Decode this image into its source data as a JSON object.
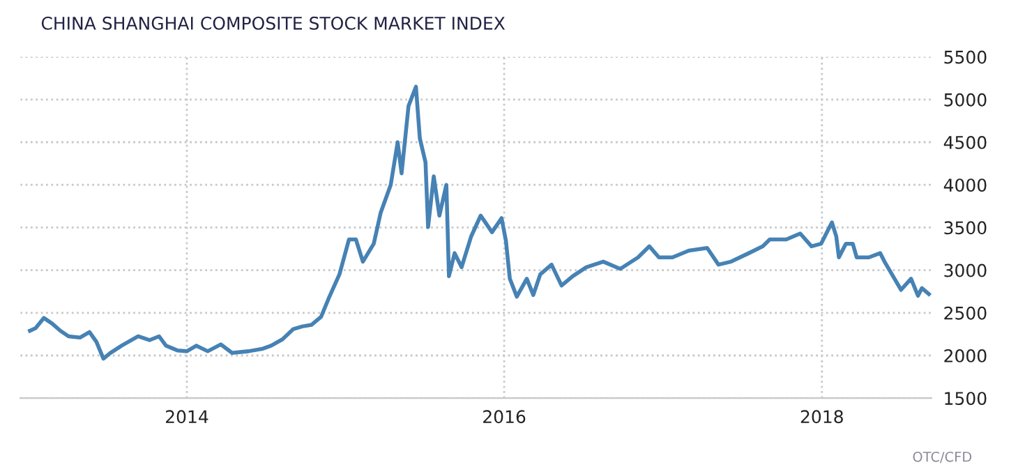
{
  "chart_data": {
    "type": "line",
    "title": "CHINA SHANGHAI COMPOSITE STOCK MARKET INDEX",
    "annotations": [
      "OTC/CFD"
    ],
    "x": [
      "2013-01-05",
      "2013-01-18",
      "2013-02-06",
      "2013-02-25",
      "2013-03-16",
      "2013-04-04",
      "2013-04-30",
      "2013-05-22",
      "2013-06-07",
      "2013-06-23",
      "2013-07-09",
      "2013-08-04",
      "2013-09-11",
      "2013-10-07",
      "2013-10-29",
      "2013-11-14",
      "2013-12-10",
      "2014-01-01",
      "2014-01-23",
      "2014-02-18",
      "2014-03-20",
      "2014-04-15",
      "2014-05-23",
      "2014-06-25",
      "2014-07-14",
      "2014-08-09",
      "2014-09-03",
      "2014-09-23",
      "2014-10-15",
      "2014-11-06",
      "2014-11-25",
      "2014-12-18",
      "2015-01-09",
      "2015-01-25",
      "2015-02-10",
      "2015-03-07",
      "2015-03-23",
      "2015-04-15",
      "2015-05-01",
      "2015-05-10",
      "2015-05-26",
      "2015-06-12",
      "2015-06-21",
      "2015-07-04",
      "2015-07-10",
      "2015-07-23",
      "2015-08-05",
      "2015-08-21",
      "2015-08-27",
      "2015-09-09",
      "2015-09-25",
      "2015-10-17",
      "2015-11-08",
      "2015-12-04",
      "2015-12-26",
      "2016-01-05",
      "2016-01-14",
      "2016-01-30",
      "2016-02-22",
      "2016-03-08",
      "2016-03-24",
      "2016-04-19",
      "2016-05-12",
      "2016-06-07",
      "2016-07-08",
      "2016-08-16",
      "2016-09-24",
      "2016-11-04",
      "2016-11-30",
      "2016-12-22",
      "2017-01-22",
      "2017-03-01",
      "2017-04-12",
      "2017-05-08",
      "2017-06-06",
      "2017-07-17",
      "2017-08-18",
      "2017-09-03",
      "2017-10-11",
      "2017-11-12",
      "2017-12-08",
      "2017-12-30",
      "2018-01-24",
      "2018-02-03",
      "2018-02-09",
      "2018-02-25",
      "2018-03-13",
      "2018-03-22",
      "2018-04-19",
      "2018-05-15",
      "2018-05-25",
      "2018-06-17",
      "2018-07-02",
      "2018-07-25",
      "2018-08-10",
      "2018-08-19",
      "2018-09-04"
    ],
    "series": [
      {
        "color": "#4682b4",
        "values": [
          2290,
          2320,
          2440,
          2375,
          2290,
          2225,
          2210,
          2275,
          2160,
          1963,
          2030,
          2115,
          2225,
          2180,
          2225,
          2115,
          2060,
          2050,
          2115,
          2050,
          2130,
          2030,
          2050,
          2080,
          2115,
          2190,
          2310,
          2340,
          2360,
          2455,
          2690,
          2950,
          3360,
          3360,
          3100,
          3310,
          3675,
          4000,
          4500,
          4135,
          4925,
          5150,
          4545,
          4265,
          3505,
          4100,
          3640,
          4000,
          2930,
          3200,
          3035,
          3395,
          3640,
          3445,
          3610,
          3345,
          2900,
          2690,
          2900,
          2710,
          2950,
          3065,
          2820,
          2930,
          3035,
          3100,
          3015,
          3150,
          3280,
          3150,
          3150,
          3230,
          3260,
          3065,
          3100,
          3200,
          3280,
          3360,
          3360,
          3430,
          3280,
          3310,
          3560,
          3395,
          3150,
          3310,
          3310,
          3150,
          3150,
          3200,
          3100,
          2900,
          2770,
          2900,
          2700,
          2790,
          2720
        ]
      }
    ],
    "xlim": [
      "2012-12-14",
      "2018-09-10"
    ],
    "xticks": [
      "2014",
      "2016",
      "2018"
    ],
    "ylim": [
      1500,
      5500
    ],
    "yticks": [
      1500,
      2000,
      2500,
      3000,
      3500,
      4000,
      4500,
      5000,
      5500
    ],
    "grid": true
  }
}
